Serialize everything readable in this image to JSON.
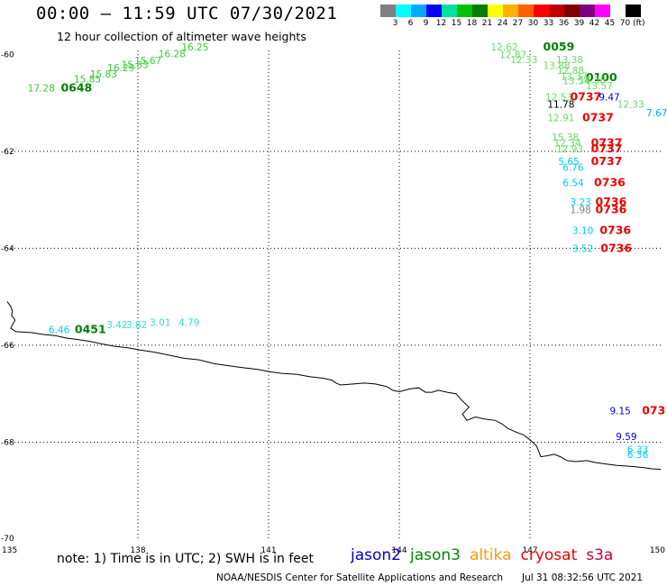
{
  "header": {
    "title": "00:00 – 11:59 UTC 07/30/2021",
    "subtitle": "12 hour collection of altimeter wave heights"
  },
  "legend": {
    "unit": "(ft)",
    "colors": [
      "#808080",
      "#00ffff",
      "#00aaff",
      "#0000ff",
      "#00e0a0",
      "#00c000",
      "#008000",
      "#ffff00",
      "#ffb000",
      "#ff6000",
      "#ff0000",
      "#c00000",
      "#800000",
      "#800080",
      "#ff00ff",
      "#ffffff",
      "#000000"
    ],
    "labels": [
      "3",
      "6",
      "9",
      "12",
      "15",
      "18",
      "21",
      "24",
      "27",
      "30",
      "33",
      "36",
      "39",
      "42",
      "45",
      "70"
    ]
  },
  "axes": {
    "x_ticks": [
      "135",
      "138",
      "141",
      "144",
      "147",
      "150"
    ],
    "y_ticks": [
      "-60",
      "-62",
      "-64",
      "-66",
      "-68",
      "-70"
    ]
  },
  "footer": {
    "note": "note: 1) Time is in UTC; 2) SWH is in feet",
    "satellites": [
      {
        "name": "jason2",
        "color": "#0000cc"
      },
      {
        "name": "jason3",
        "color": "#008800"
      },
      {
        "name": "altika",
        "color": "#ff9900"
      },
      {
        "name": "cryosat",
        "color": "#ee0000"
      },
      {
        "name": "s3a",
        "color": "#cc0033"
      }
    ],
    "credit": "NOAA/NESDIS Center for Satellite Applications and Research",
    "stamp": "Jul 31 08:32:56 UTC 2021"
  },
  "observations": [
    {
      "text": "16.25",
      "lon": 139.0,
      "lat": -59.92,
      "color": "#33cc33"
    },
    {
      "text": "16.28",
      "lon": 138.47,
      "lat": -60.06,
      "color": "#33cc33"
    },
    {
      "text": "15.67",
      "lon": 137.92,
      "lat": -60.2,
      "color": "#33cc33"
    },
    {
      "text": "15.83",
      "lon": 137.62,
      "lat": -60.28,
      "color": "#33cc33"
    },
    {
      "text": "16.29",
      "lon": 137.3,
      "lat": -60.35,
      "color": "#33cc33"
    },
    {
      "text": "15.83",
      "lon": 136.9,
      "lat": -60.48,
      "color": "#33cc33"
    },
    {
      "text": "15.85",
      "lon": 136.53,
      "lat": -60.58,
      "color": "#33cc33"
    },
    {
      "text": "17.28",
      "lon": 135.47,
      "lat": -60.77,
      "color": "#33cc33"
    },
    {
      "text": "0648",
      "lon": 136.23,
      "lat": -60.77,
      "color": "#008000",
      "time": true
    },
    {
      "text": "12.62",
      "lon": 146.1,
      "lat": -59.92,
      "color": "#66dd66"
    },
    {
      "text": "0059",
      "lon": 147.3,
      "lat": -59.92,
      "color": "#008000",
      "time": true
    },
    {
      "text": "12.87",
      "lon": 146.3,
      "lat": -60.08,
      "color": "#66dd66"
    },
    {
      "text": "12.33",
      "lon": 146.55,
      "lat": -60.18,
      "color": "#66dd66"
    },
    {
      "text": "13.38",
      "lon": 147.6,
      "lat": -60.18,
      "color": "#66dd66"
    },
    {
      "text": "13.88",
      "lon": 147.3,
      "lat": -60.3,
      "color": "#66dd66"
    },
    {
      "text": "12.88",
      "lon": 147.62,
      "lat": -60.4,
      "color": "#66dd66"
    },
    {
      "text": "13.37",
      "lon": 147.7,
      "lat": -60.52,
      "color": "#66dd66"
    },
    {
      "text": "0100",
      "lon": 148.28,
      "lat": -60.55,
      "color": "#008000",
      "time": true
    },
    {
      "text": "14.38",
      "lon": 148.12,
      "lat": -60.6,
      "color": "#66dd66"
    },
    {
      "text": "13.54",
      "lon": 147.75,
      "lat": -60.62,
      "color": "#66dd66"
    },
    {
      "text": "13.57",
      "lon": 148.28,
      "lat": -60.72,
      "color": "#66dd66"
    },
    {
      "text": "12.53",
      "lon": 147.35,
      "lat": -60.95,
      "color": "#66dd66"
    },
    {
      "text": "0737",
      "lon": 147.92,
      "lat": -60.95,
      "color": "#ee0000",
      "time": true
    },
    {
      "text": "9.47",
      "lon": 148.58,
      "lat": -60.95,
      "color": "#0000cc"
    },
    {
      "text": "11.78",
      "lon": 147.4,
      "lat": -61.1,
      "color": "#000000"
    },
    {
      "text": "12.33",
      "lon": 149.0,
      "lat": -61.1,
      "color": "#66dd66"
    },
    {
      "text": "7.67",
      "lon": 149.67,
      "lat": -61.28,
      "color": "#00aaff"
    },
    {
      "text": "12.91",
      "lon": 147.4,
      "lat": -61.38,
      "color": "#66dd66"
    },
    {
      "text": "0737",
      "lon": 148.2,
      "lat": -61.38,
      "color": "#ee0000",
      "time": true
    },
    {
      "text": "15.38",
      "lon": 147.5,
      "lat": -61.78,
      "color": "#66dd66"
    },
    {
      "text": "12.34",
      "lon": 147.55,
      "lat": -61.9,
      "color": "#66dd66"
    },
    {
      "text": "0737",
      "lon": 148.4,
      "lat": -61.9,
      "color": "#ee0000",
      "time": true
    },
    {
      "text": "12.93",
      "lon": 147.6,
      "lat": -62.02,
      "color": "#66dd66"
    },
    {
      "text": "0737",
      "lon": 148.4,
      "lat": -62.02,
      "color": "#ee0000",
      "time": true
    },
    {
      "text": "5.65",
      "lon": 147.65,
      "lat": -62.28,
      "color": "#00ccff"
    },
    {
      "text": "0737",
      "lon": 148.4,
      "lat": -62.28,
      "color": "#ee0000",
      "time": true
    },
    {
      "text": "6.76",
      "lon": 147.75,
      "lat": -62.4,
      "color": "#00ccff"
    },
    {
      "text": "6.54",
      "lon": 147.75,
      "lat": -62.72,
      "color": "#00ccff"
    },
    {
      "text": "0736",
      "lon": 148.47,
      "lat": -62.72,
      "color": "#ee0000",
      "time": true
    },
    {
      "text": "3.23",
      "lon": 147.92,
      "lat": -63.12,
      "color": "#00ccff"
    },
    {
      "text": "0736",
      "lon": 148.5,
      "lat": -63.12,
      "color": "#ee0000",
      "time": true
    },
    {
      "text": "1.98",
      "lon": 147.92,
      "lat": -63.28,
      "color": "#808080"
    },
    {
      "text": "0736",
      "lon": 148.5,
      "lat": -63.28,
      "color": "#ee0000",
      "time": true
    },
    {
      "text": "3.10",
      "lon": 147.97,
      "lat": -63.7,
      "color": "#00ccff"
    },
    {
      "text": "0736",
      "lon": 148.6,
      "lat": -63.7,
      "color": "#ee0000",
      "time": true
    },
    {
      "text": "3.52",
      "lon": 147.97,
      "lat": -64.08,
      "color": "#00ccff"
    },
    {
      "text": "0736",
      "lon": 148.62,
      "lat": -64.08,
      "color": "#ee0000",
      "time": true
    },
    {
      "text": "6.46",
      "lon": 135.95,
      "lat": -65.75,
      "color": "#00ccff"
    },
    {
      "text": "0451",
      "lon": 136.55,
      "lat": -65.75,
      "color": "#008000",
      "time": true
    },
    {
      "text": "3.42",
      "lon": 137.28,
      "lat": -65.65,
      "color": "#33dddd"
    },
    {
      "text": "3.82",
      "lon": 137.73,
      "lat": -65.65,
      "color": "#33dddd"
    },
    {
      "text": "3.01",
      "lon": 138.27,
      "lat": -65.6,
      "color": "#33dddd"
    },
    {
      "text": "4.79",
      "lon": 138.93,
      "lat": -65.6,
      "color": "#33dddd"
    },
    {
      "text": "9.15",
      "lon": 148.83,
      "lat": -67.42,
      "color": "#0000cc"
    },
    {
      "text": "073",
      "lon": 149.57,
      "lat": -67.42,
      "color": "#ee0000",
      "time": true
    },
    {
      "text": "9.59",
      "lon": 148.97,
      "lat": -67.95,
      "color": "#0000cc"
    },
    {
      "text": "6.33",
      "lon": 149.23,
      "lat": -68.22,
      "color": "#00ccff"
    },
    {
      "text": "6.36",
      "lon": 149.23,
      "lat": -68.33,
      "color": "#00ccff"
    }
  ],
  "coastline": [
    [
      135.0,
      -65.1
    ],
    [
      135.08,
      -65.2
    ],
    [
      135.12,
      -65.3
    ],
    [
      135.1,
      -65.38
    ],
    [
      135.18,
      -65.48
    ],
    [
      135.12,
      -65.58
    ],
    [
      135.08,
      -65.65
    ],
    [
      135.2,
      -65.72
    ],
    [
      135.55,
      -65.74
    ],
    [
      135.85,
      -65.78
    ],
    [
      136.1,
      -65.8
    ],
    [
      136.35,
      -65.85
    ],
    [
      136.6,
      -65.88
    ],
    [
      136.9,
      -65.92
    ],
    [
      137.15,
      -65.97
    ],
    [
      137.45,
      -66.02
    ],
    [
      137.75,
      -66.05
    ],
    [
      138.05,
      -66.1
    ],
    [
      138.35,
      -66.14
    ],
    [
      138.7,
      -66.2
    ],
    [
      139.05,
      -66.27
    ],
    [
      139.4,
      -66.3
    ],
    [
      139.75,
      -66.38
    ],
    [
      140.05,
      -66.42
    ],
    [
      140.4,
      -66.46
    ],
    [
      140.75,
      -66.5
    ],
    [
      141.05,
      -66.55
    ],
    [
      141.3,
      -66.58
    ],
    [
      141.65,
      -66.6
    ],
    [
      141.95,
      -66.65
    ],
    [
      142.25,
      -66.68
    ],
    [
      142.45,
      -66.72
    ],
    [
      142.55,
      -66.78
    ],
    [
      142.65,
      -66.82
    ],
    [
      142.95,
      -66.8
    ],
    [
      143.2,
      -66.78
    ],
    [
      143.45,
      -66.8
    ],
    [
      143.7,
      -66.85
    ],
    [
      143.85,
      -66.93
    ],
    [
      144.0,
      -66.96
    ],
    [
      144.25,
      -66.9
    ],
    [
      144.45,
      -66.88
    ],
    [
      144.6,
      -66.97
    ],
    [
      144.75,
      -66.97
    ],
    [
      144.9,
      -66.93
    ],
    [
      145.1,
      -66.97
    ],
    [
      145.3,
      -67.0
    ],
    [
      145.45,
      -67.15
    ],
    [
      145.6,
      -67.28
    ],
    [
      145.45,
      -67.42
    ],
    [
      145.55,
      -67.55
    ],
    [
      145.75,
      -67.48
    ],
    [
      145.95,
      -67.52
    ],
    [
      146.2,
      -67.55
    ],
    [
      146.35,
      -67.62
    ],
    [
      146.5,
      -67.72
    ],
    [
      146.7,
      -67.8
    ],
    [
      146.85,
      -67.85
    ],
    [
      147.0,
      -67.95
    ],
    [
      147.15,
      -68.08
    ],
    [
      147.25,
      -68.3
    ],
    [
      147.4,
      -68.28
    ],
    [
      147.55,
      -68.25
    ],
    [
      147.7,
      -68.3
    ],
    [
      147.85,
      -68.38
    ],
    [
      148.05,
      -68.4
    ],
    [
      148.3,
      -68.38
    ],
    [
      148.5,
      -68.42
    ],
    [
      148.75,
      -68.45
    ],
    [
      149.0,
      -68.48
    ],
    [
      149.3,
      -68.5
    ],
    [
      149.55,
      -68.52
    ],
    [
      149.8,
      -68.55
    ],
    [
      150.0,
      -68.56
    ]
  ]
}
